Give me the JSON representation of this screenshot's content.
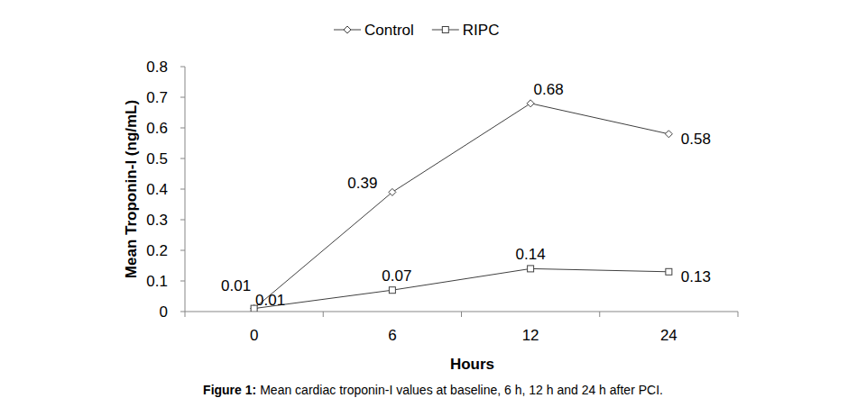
{
  "chart_data": {
    "type": "line",
    "figure_label": "Figure 1:",
    "title": "Mean cardiac troponin-I values at baseline, 6 h, 12 h and 24 h after PCI.",
    "x_label": "Hours",
    "y_label": "Mean Troponin-I (ng/mL)",
    "categories": [
      "0",
      "6",
      "12",
      "24"
    ],
    "series": [
      {
        "name": "Control",
        "color": "#404040",
        "marker": "diamond",
        "values": [
          0.01,
          0.39,
          0.68,
          0.58
        ]
      },
      {
        "name": "RIPC",
        "color": "#404040",
        "marker": "square",
        "values": [
          0.01,
          0.07,
          0.14,
          0.13
        ]
      }
    ],
    "ylim": [
      0,
      0.8
    ],
    "yticks": [
      0,
      0.1,
      0.2,
      0.3,
      0.4,
      0.5,
      0.6,
      0.7,
      0.8
    ],
    "grid": false,
    "legend": "top",
    "data_labels": true
  }
}
